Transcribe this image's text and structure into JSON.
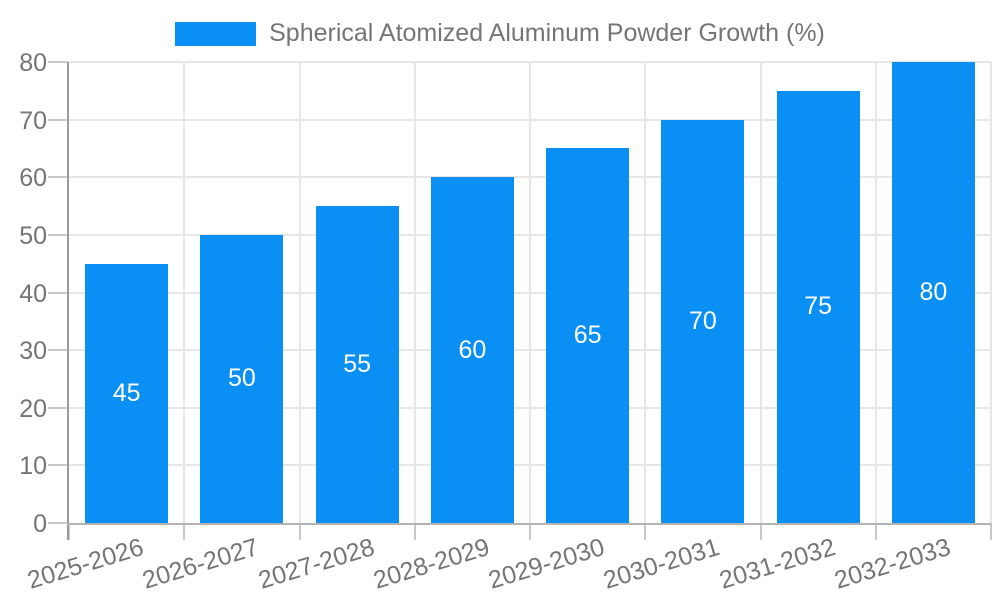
{
  "chart_data": {
    "type": "bar",
    "title": "",
    "legend": [
      "Spherical Atomized Aluminum Powder Growth (%)"
    ],
    "legend_position": "top",
    "categories": [
      "2025-2026",
      "2026-2027",
      "2027-2028",
      "2028-2029",
      "2029-2030",
      "2030-2031",
      "2031-2032",
      "2032-2033"
    ],
    "values": [
      45,
      50,
      55,
      60,
      65,
      70,
      75,
      80
    ],
    "xlabel": "",
    "ylabel": "",
    "ylim": [
      0,
      80
    ],
    "ytick_interval": 10,
    "ytick_labels": [
      "0",
      "10",
      "20",
      "30",
      "40",
      "50",
      "60",
      "70",
      "80"
    ],
    "grid": true,
    "bar_labels_inside": true,
    "colors": {
      "bar": "#0a8ff5",
      "bar_label": "#ffffff",
      "axis_text": "#757575",
      "gridline": "#e7e7e7",
      "axis_line": "#b3b3b3",
      "tick": "#c9c9c9"
    }
  }
}
